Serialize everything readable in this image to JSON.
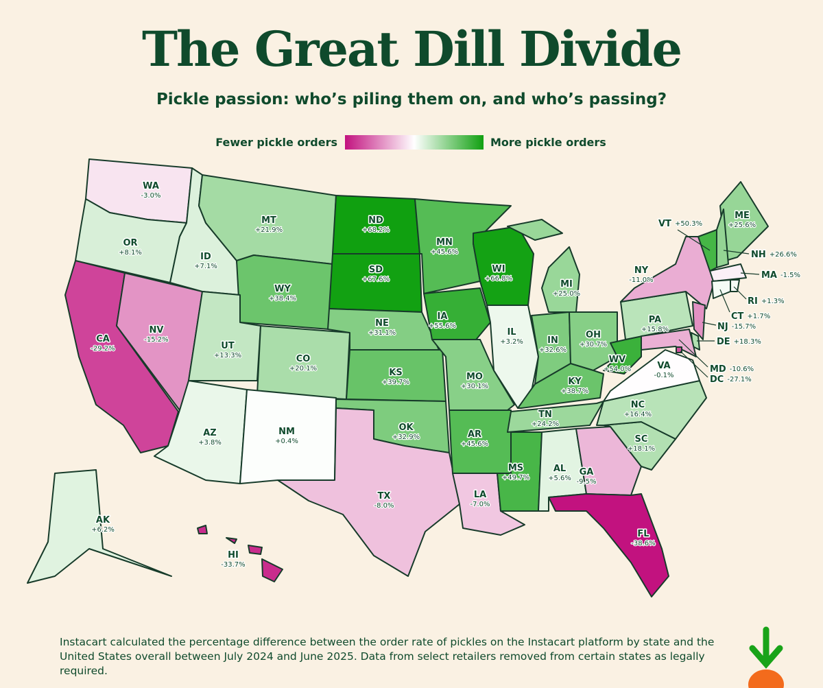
{
  "chart_data": {
    "type": "choropleth",
    "title": "The Great Dill Divide",
    "subtitle": "Pickle passion: who’s piling them on, and who’s passing?",
    "legend": {
      "low": "Fewer pickle orders",
      "high": "More pickle orders"
    },
    "colors": [
      "#c2127f",
      "#ffffff",
      "#10a010"
    ],
    "categories": [
      "WA",
      "OR",
      "CA",
      "NV",
      "ID",
      "MT",
      "WY",
      "UT",
      "CO",
      "AZ",
      "NM",
      "ND",
      "SD",
      "NE",
      "KS",
      "OK",
      "TX",
      "MN",
      "IA",
      "MO",
      "AR",
      "LA",
      "WI",
      "IL",
      "MI",
      "IN",
      "OH",
      "KY",
      "TN",
      "MS",
      "AL",
      "GA",
      "FL",
      "SC",
      "NC",
      "VA",
      "WV",
      "PA",
      "NY",
      "ME",
      "VT",
      "NH",
      "MA",
      "RI",
      "CT",
      "NJ",
      "DE",
      "MD",
      "DC",
      "AK",
      "HI"
    ],
    "values": [
      -3.0,
      8.1,
      -29.2,
      -15.2,
      7.1,
      21.9,
      38.4,
      13.3,
      20.1,
      3.8,
      0.4,
      68.2,
      67.6,
      31.1,
      39.7,
      32.9,
      -8.0,
      45.6,
      55.6,
      30.1,
      45.6,
      -7.0,
      66.8,
      3.2,
      25.0,
      32.6,
      30.7,
      38.7,
      24.2,
      49.7,
      5.6,
      -9.5,
      -38.6,
      18.1,
      16.4,
      -0.1,
      54.0,
      15.8,
      -11.0,
      25.6,
      50.3,
      26.6,
      -1.5,
      1.3,
      1.7,
      -15.7,
      18.3,
      -10.6,
      -27.1,
      6.2,
      -33.7
    ],
    "value_labels": [
      "-3.0%",
      "+8.1%",
      "-29.2%",
      "-15.2%",
      "+7.1%",
      "+21.9%",
      "+38.4%",
      "+13.3%",
      "+20.1%",
      "+3.8%",
      "+0.4%",
      "+68.2%",
      "+67.6%",
      "+31.1%",
      "+39.7%",
      "+32.9%",
      "-8.0%",
      "+45.6%",
      "+55.6%",
      "+30.1%",
      "+45.6%",
      "-7.0%",
      "+66.8%",
      "+3.2%",
      "+25.0%",
      "+32.6%",
      "+30.7%",
      "+38.7%",
      "+24.2%",
      "+49.7%",
      "+5.6%",
      "-9.5%",
      "-38.6%",
      "+18.1%",
      "+16.4%",
      "-0.1%",
      "+54.0%",
      "+15.8%",
      "-11.0%",
      "+25.6%",
      "+50.3%",
      "+26.6%",
      "-1.5%",
      "+1.3%",
      "+1.7%",
      "-15.7%",
      "+18.3%",
      "-10.6%",
      "-27.1%",
      "+6.2%",
      "-33.7%"
    ],
    "note": "Instacart calculated the percentage difference between the order rate of pickles on the Instacart platform by state and the United States overall between July 2024 and June 2025. Data from select retailers removed from certain states as legally required."
  }
}
